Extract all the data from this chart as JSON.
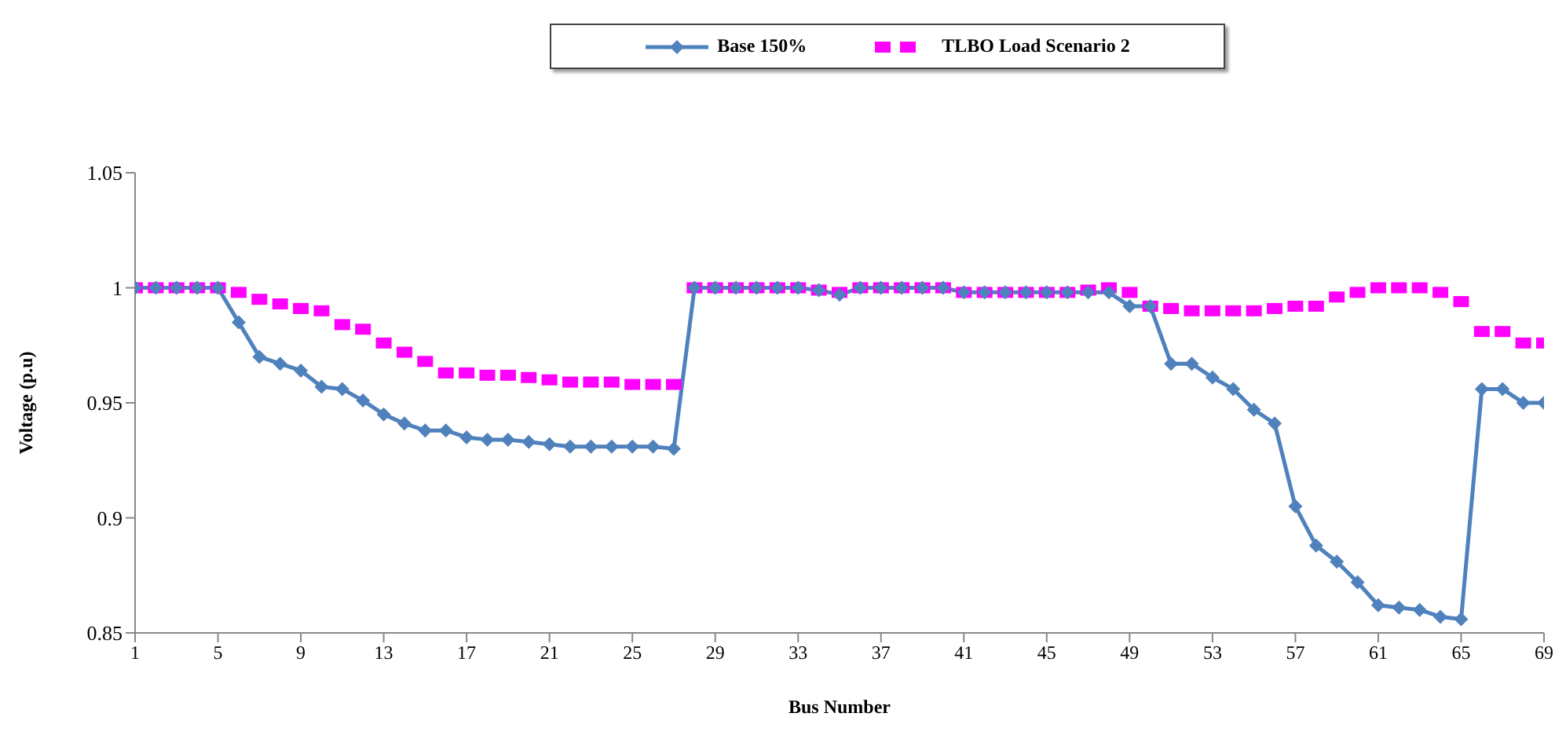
{
  "chart_data": {
    "type": "line",
    "xlabel": "Bus Number",
    "ylabel": "Voltage (p.u)",
    "x": [
      1,
      2,
      3,
      4,
      5,
      6,
      7,
      8,
      9,
      10,
      11,
      12,
      13,
      14,
      15,
      16,
      17,
      18,
      19,
      20,
      21,
      22,
      23,
      24,
      25,
      26,
      27,
      28,
      29,
      30,
      31,
      32,
      33,
      34,
      35,
      36,
      37,
      38,
      39,
      40,
      41,
      42,
      43,
      44,
      45,
      46,
      47,
      48,
      49,
      50,
      51,
      52,
      53,
      54,
      55,
      56,
      57,
      58,
      59,
      60,
      61,
      62,
      63,
      64,
      65,
      66,
      67,
      68,
      69
    ],
    "xlim": [
      1,
      69
    ],
    "xticks": [
      1,
      5,
      9,
      13,
      17,
      21,
      25,
      29,
      33,
      37,
      41,
      45,
      49,
      53,
      57,
      61,
      65,
      69
    ],
    "ylim": [
      0.85,
      1.05
    ],
    "yticks": [
      0.85,
      0.9,
      0.95,
      1,
      1.05
    ],
    "grid": false,
    "legend": "top",
    "series": [
      {
        "name": "Base 150%",
        "marker": "diamond",
        "line_style": "solid",
        "color": "#4f81bd",
        "values": [
          1,
          1,
          1,
          1,
          1,
          0.985,
          0.97,
          0.967,
          0.964,
          0.957,
          0.956,
          0.951,
          0.945,
          0.941,
          0.938,
          0.938,
          0.935,
          0.934,
          0.934,
          0.933,
          0.932,
          0.931,
          0.931,
          0.931,
          0.931,
          0.931,
          0.93,
          1,
          1,
          1,
          1,
          1,
          1,
          0.999,
          0.997,
          1,
          1,
          1,
          1,
          1,
          0.998,
          0.998,
          0.998,
          0.998,
          0.998,
          0.998,
          0.998,
          0.998,
          0.992,
          0.992,
          0.967,
          0.967,
          0.961,
          0.956,
          0.947,
          0.941,
          0.905,
          0.888,
          0.881,
          0.872,
          0.862,
          0.861,
          0.86,
          0.857,
          0.856,
          0.956,
          0.956,
          0.95,
          0.95
        ]
      },
      {
        "name": "TLBO Load Scenario 2",
        "type": "scatter",
        "marker": "square",
        "color": "#ff00ff",
        "values": [
          1,
          1,
          1,
          1,
          1,
          0.998,
          0.995,
          0.993,
          0.991,
          0.99,
          0.984,
          0.982,
          0.976,
          0.972,
          0.968,
          0.963,
          0.963,
          0.962,
          0.962,
          0.961,
          0.96,
          0.959,
          0.959,
          0.959,
          0.958,
          0.958,
          0.958,
          1,
          1,
          1,
          1,
          1,
          1,
          0.999,
          0.998,
          1,
          1,
          1,
          1,
          1,
          0.998,
          0.998,
          0.998,
          0.998,
          0.998,
          0.998,
          0.999,
          1,
          0.998,
          0.992,
          0.991,
          0.99,
          0.99,
          0.99,
          0.99,
          0.991,
          0.992,
          0.992,
          0.996,
          0.998,
          1,
          1,
          1,
          0.998,
          0.994,
          0.981,
          0.981,
          0.976,
          0.976
        ]
      }
    ]
  }
}
